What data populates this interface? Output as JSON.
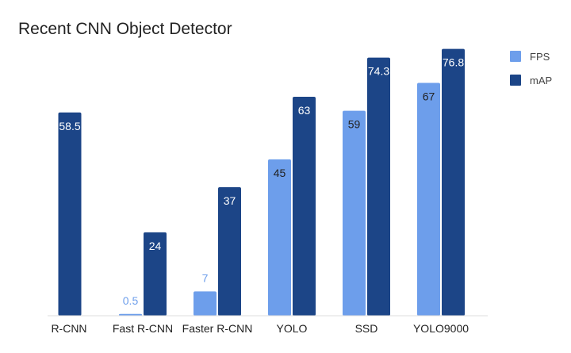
{
  "chart_data": {
    "type": "bar",
    "title": "Recent CNN Object Detector",
    "xlabel": "",
    "ylabel": "",
    "ylim": [
      0,
      80
    ],
    "grid": false,
    "legend_position": "top-right",
    "categories": [
      "R-CNN",
      "Fast R-CNN",
      "Faster R-CNN",
      "YOLO",
      "SSD",
      "YOLO9000"
    ],
    "series": [
      {
        "name": "FPS",
        "color": "#6d9eeb",
        "values": [
          null,
          0.5,
          7,
          45,
          59,
          67
        ],
        "labels": [
          "",
          "0.5",
          "7",
          "45",
          "59",
          "67"
        ]
      },
      {
        "name": "mAP",
        "color": "#1c4587",
        "values": [
          58.5,
          24,
          37,
          63,
          74.3,
          76.8
        ],
        "labels": [
          "58.5",
          "24",
          "37",
          "63",
          "74.3",
          "76.8"
        ]
      }
    ],
    "colors": {
      "label_outside_light": "#6d9eeb",
      "label_outside_dark": "#1c4587",
      "label_inside_fps": "#222222",
      "label_inside_map": "#ffffff"
    }
  }
}
